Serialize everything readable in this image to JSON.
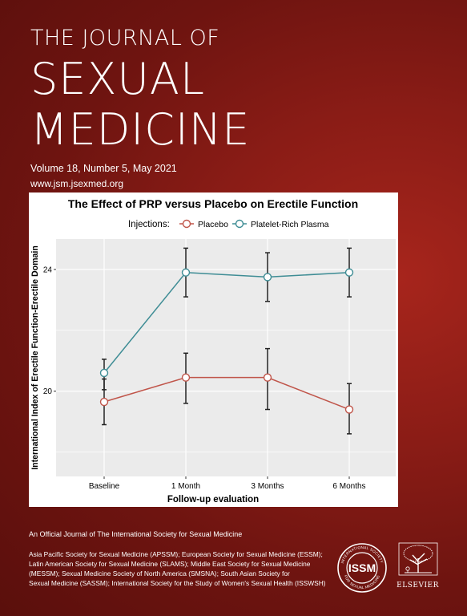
{
  "journal": {
    "line1": "THE JOURNAL OF",
    "line2": "SEXUAL",
    "line3": "MEDICINE",
    "issue": "Volume 18, Number 5, May 2021",
    "url": "www.jsm.jsexmed.org"
  },
  "chart_data": {
    "type": "line",
    "title": "The Effect of PRP versus Placebo on Erectile Function",
    "legend_title": "Injections:",
    "legend_position": "top",
    "xlabel": "Follow-up evaluation",
    "ylabel": "International Index of Erectile Function-Erectile Domain",
    "categories": [
      "Baseline",
      "1 Month",
      "3 Months",
      "6 Months"
    ],
    "ylim": [
      17.2,
      25.0
    ],
    "yticks": [
      20,
      24
    ],
    "grid": true,
    "series": [
      {
        "name": "Placebo",
        "color": "#c0554a",
        "values": [
          19.65,
          20.45,
          20.45,
          19.4
        ],
        "error_low": [
          18.9,
          19.6,
          19.4,
          18.6
        ],
        "error_high": [
          20.4,
          21.25,
          21.4,
          20.25
        ]
      },
      {
        "name": "Platelet-Rich Plasma",
        "color": "#3f8d95",
        "values": [
          20.6,
          23.9,
          23.75,
          23.9
        ],
        "error_low": [
          20.05,
          23.1,
          22.95,
          23.1
        ],
        "error_high": [
          21.05,
          24.7,
          24.55,
          24.7
        ]
      }
    ]
  },
  "footer": {
    "official": "An Official Journal of The International Society for Sexual Medicine",
    "societies": [
      "Asia Pacific Society for Sexual Medicine (APSSM); European Society for Sexual Medicine (ESSM);",
      "Latin American Society for Sexual Medicine (SLAMS); Middle East Society for Sexual Medicine",
      "(MESSM); Sexual Medicine Society of North America (SMSNA); South Asian Society for",
      "Sexual Medicine (SASSM); International Society for the Study of Women's Sexual Health (ISSWSH)"
    ],
    "issm_abbr": "ISSM",
    "issm_ring_top": "INTERNATIONAL SOCIETY",
    "issm_ring_bottom": "FOR SEXUAL MEDICINE",
    "publisher": "ELSEVIER"
  },
  "colors": {
    "background": "#8a1c16",
    "plot_background": "#ebebeb",
    "grid": "#ffffff"
  }
}
